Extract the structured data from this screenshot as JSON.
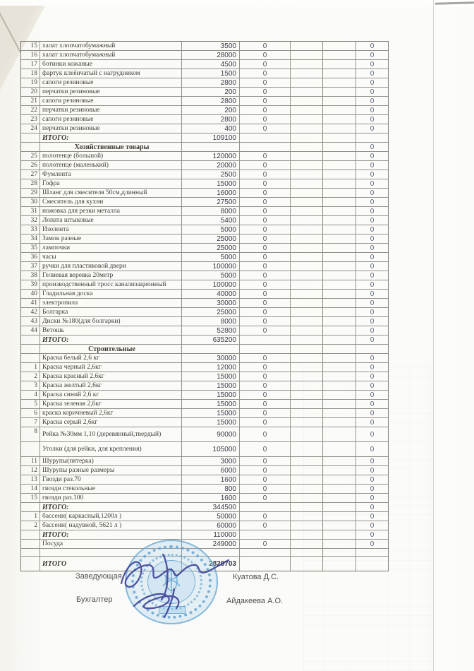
{
  "table": {
    "rows": [
      {
        "type": "item",
        "num": "15",
        "name": "халат хлопчатобумажный",
        "price": "3500",
        "c4": "0",
        "c7": "0"
      },
      {
        "type": "item",
        "num": "16",
        "name": "халат хлопчатобумажный",
        "price": "28000",
        "c4": "0",
        "c7": "0"
      },
      {
        "type": "item",
        "num": "17",
        "name": "ботинки кожаные",
        "price": "4500",
        "c4": "0",
        "c7": "0"
      },
      {
        "type": "item",
        "num": "18",
        "name": "фартук клеёнчатый с нагрудником",
        "price": "1500",
        "c4": "0",
        "c7": "0"
      },
      {
        "type": "item",
        "num": "19",
        "name": "сапоги резиновые",
        "price": "2800",
        "c4": "0",
        "c7": "0"
      },
      {
        "type": "item",
        "num": "20",
        "name": "перчатки резиновые",
        "price": "200",
        "c4": "0",
        "c7": "0"
      },
      {
        "type": "item",
        "num": "21",
        "name": "сапоги резиновые",
        "price": "2800",
        "c4": "0",
        "c7": "0"
      },
      {
        "type": "item",
        "num": "22",
        "name": "перчатки резиновые",
        "price": "200",
        "c4": "0",
        "c7": "0"
      },
      {
        "type": "item",
        "num": "23",
        "name": "сапоги резиновые",
        "price": "2800",
        "c4": "0",
        "c7": "0"
      },
      {
        "type": "item",
        "num": "24",
        "name": "перчатки резиновые",
        "price": "400",
        "c4": "0",
        "c7": "0"
      },
      {
        "type": "total",
        "num": "",
        "name": "ИТОГО:",
        "price": "109100",
        "c4": "",
        "c7": ""
      },
      {
        "type": "section",
        "num": "",
        "name": "Хозяйственные товары",
        "price": "",
        "c4": "",
        "c7": "0"
      },
      {
        "type": "item",
        "num": "25",
        "name": "полотенце (большой)",
        "price": "120000",
        "c4": "0",
        "c7": "0"
      },
      {
        "type": "item",
        "num": "26",
        "name": "полотенце (маленький)",
        "price": "20000",
        "c4": "0",
        "c7": "0"
      },
      {
        "type": "item",
        "num": "27",
        "name": "Фумлента",
        "price": "2500",
        "c4": "0",
        "c7": "0"
      },
      {
        "type": "item",
        "num": "28",
        "name": "Гофра",
        "price": "15000",
        "c4": "0",
        "c7": "0"
      },
      {
        "type": "item",
        "num": "29",
        "name": "Шланг для смесителя 50см,длинный",
        "price": "16000",
        "c4": "0",
        "c7": "0"
      },
      {
        "type": "item",
        "num": "30",
        "name": "Смеситель для кухни",
        "price": "27500",
        "c4": "0",
        "c7": "0"
      },
      {
        "type": "item",
        "num": "31",
        "name": "ножовка для резки металла",
        "price": "8000",
        "c4": "0",
        "c7": "0"
      },
      {
        "type": "item",
        "num": "32",
        "name": "Лопата штыковые",
        "price": "5400",
        "c4": "0",
        "c7": "0"
      },
      {
        "type": "item",
        "num": "33",
        "name": "Изолента",
        "price": "5000",
        "c4": "0",
        "c7": "0"
      },
      {
        "type": "item",
        "num": "34",
        "name": "Замок разные",
        "price": "25000",
        "c4": "0",
        "c7": "0"
      },
      {
        "type": "item",
        "num": "35",
        "name": "лампочки",
        "price": "25000",
        "c4": "0",
        "c7": "0"
      },
      {
        "type": "item",
        "num": "36",
        "name": "часы",
        "price": "5000",
        "c4": "0",
        "c7": "0"
      },
      {
        "type": "item",
        "num": "37",
        "name": "ручки для пластиковой двери",
        "price": "100000",
        "c4": "0",
        "c7": "0"
      },
      {
        "type": "item",
        "num": "38",
        "name": "Гелиевая веревка 20метр",
        "price": "5000",
        "c4": "0",
        "c7": "0"
      },
      {
        "type": "item",
        "num": "39",
        "name": "производственный тросс канализационный",
        "price": "100000",
        "c4": "0",
        "c7": "0"
      },
      {
        "type": "item",
        "num": "40",
        "name": "Гладильная доска",
        "price": "40000",
        "c4": "0",
        "c7": "0"
      },
      {
        "type": "item",
        "num": "41",
        "name": "электропила",
        "price": "30000",
        "c4": "0",
        "c7": "0"
      },
      {
        "type": "item",
        "num": "42",
        "name": "Болгарка",
        "price": "25000",
        "c4": "0",
        "c7": "0"
      },
      {
        "type": "item",
        "num": "43",
        "name": "Диски №180(для болгарки)",
        "price": "8000",
        "c4": "0",
        "c7": "0"
      },
      {
        "type": "item",
        "num": "44",
        "name": "Ветошь",
        "price": "52800",
        "c4": "0",
        "c7": "0"
      },
      {
        "type": "total",
        "num": "",
        "name": "ИТОГО:",
        "price": "635200",
        "c4": "",
        "c7": "0"
      },
      {
        "type": "section",
        "num": "",
        "name": "Строительные",
        "price": "",
        "c4": "",
        "c7": ""
      },
      {
        "type": "item",
        "num": "",
        "name": "Краска белый 2,6 кг",
        "price": "30000",
        "c4": "0",
        "c7": "0"
      },
      {
        "type": "item",
        "num": "1",
        "name": "Краска черный 2,6кг",
        "price": "12000",
        "c4": "0",
        "c7": "0"
      },
      {
        "type": "item",
        "num": "2",
        "name": "Краска красный 2,6кг",
        "price": "15000",
        "c4": "0",
        "c7": "0"
      },
      {
        "type": "item",
        "num": "3",
        "name": "Краска желтый 2,6кг",
        "price": "15000",
        "c4": "0",
        "c7": "0"
      },
      {
        "type": "item",
        "num": "4",
        "name": "Краска синий 2,6 кг",
        "price": "15000",
        "c4": "0",
        "c7": "0"
      },
      {
        "type": "item",
        "num": "5",
        "name": "Краска зеленая 2,6кг",
        "price": "15000",
        "c4": "0",
        "c7": "0"
      },
      {
        "type": "item",
        "num": "6",
        "name": "краска коричневый 2,6кг",
        "price": "15000",
        "c4": "0",
        "c7": "0"
      },
      {
        "type": "item",
        "num": "7",
        "name": "Краска серый 2,6кг",
        "price": "15000",
        "c4": "0",
        "c7": "0"
      },
      {
        "type": "tall",
        "num": "8",
        "name": "Рейка №30мм  1,10 (деревянный,твердый)",
        "price": "90000",
        "c4": "0",
        "c7": "0"
      },
      {
        "type": "tall",
        "num": "",
        "name": "Уголки (для рейки, для крепления)",
        "price": "105000",
        "c4": "0",
        "c7": "0"
      },
      {
        "type": "item",
        "num": "11",
        "name": "Шурупы(пятерка)",
        "price": "3000",
        "c4": "0",
        "c7": "0"
      },
      {
        "type": "item",
        "num": "12",
        "name": "Шурупы разные размеры",
        "price": "6000",
        "c4": "0",
        "c7": "0"
      },
      {
        "type": "item",
        "num": "13",
        "name": "Гвозди раз.70",
        "price": "1600",
        "c4": "0",
        "c7": "0"
      },
      {
        "type": "item",
        "num": "14",
        "name": "гвозди стекольные",
        "price": "800",
        "c4": "0",
        "c7": "0"
      },
      {
        "type": "item",
        "num": "15",
        "name": "гвозди раз.100",
        "price": "1600",
        "c4": "0",
        "c7": "0"
      },
      {
        "type": "total",
        "num": "",
        "name": "ИТОГО:",
        "price": "344500",
        "c4": "",
        "c7": "0"
      },
      {
        "type": "item",
        "num": "1",
        "name": "бассеин( каркасный,1200л )",
        "price": "50000",
        "c4": "0",
        "c7": "0"
      },
      {
        "type": "item",
        "num": "2",
        "name": "бассеин( надувной, 5621 л )",
        "price": "60000",
        "c4": "0",
        "c7": "0"
      },
      {
        "type": "total",
        "num": "",
        "name": "ИТОГО:",
        "price": "110000",
        "c4": "",
        "c7": "0"
      },
      {
        "type": "item",
        "num": "",
        "name": "Посуда",
        "price": "249000",
        "c4": "0",
        "c7": "0"
      },
      {
        "type": "empty",
        "num": "",
        "name": "",
        "price": "",
        "c4": "",
        "c7": ""
      },
      {
        "type": "grand",
        "num": "",
        "name": "ИТОГО",
        "price": "2829703",
        "c4": "",
        "c7": ""
      }
    ]
  },
  "signatures": {
    "role_1": "Заведующая",
    "name_1": "Куатова Д.С.",
    "role_2": "Бухгалтер",
    "name_2": "Айдакеева А.О."
  },
  "colors": {
    "stamp_blue": "#64a5d2",
    "ink_blue": "#3c3f97",
    "paper": "#fbfbf9"
  }
}
